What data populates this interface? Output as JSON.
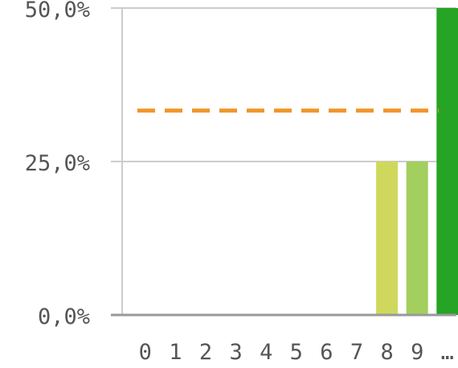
{
  "chart_data": {
    "type": "bar",
    "title": "",
    "xlabel": "",
    "ylabel": "",
    "categories": [
      "0",
      "1",
      "2",
      "3",
      "4",
      "5",
      "6",
      "7",
      "8",
      "9",
      "…"
    ],
    "values": [
      0,
      0,
      0,
      0,
      0,
      0,
      0,
      0,
      25,
      25,
      50
    ],
    "bar_colors": [
      "#e5e5a0",
      "#e5e5a0",
      "#e5e5a0",
      "#e5e5a0",
      "#e5e5a0",
      "#e5e5a0",
      "#e5e5a0",
      "#e5e5a0",
      "#cfd85c",
      "#a3cf5e",
      "#26a425"
    ],
    "reference_line": {
      "value": 33.3,
      "color": "#f0962a",
      "style": "dashed"
    },
    "ylim": [
      0,
      50
    ],
    "yticks": [
      {
        "value": 0,
        "label": "0,0%"
      },
      {
        "value": 25,
        "label": "25,0%"
      },
      {
        "value": 50,
        "label": "50,0%"
      }
    ],
    "grid": true,
    "legend": "none",
    "colors": {
      "axis": "#999999",
      "grid": "#cccccc",
      "text": "#555555"
    }
  }
}
